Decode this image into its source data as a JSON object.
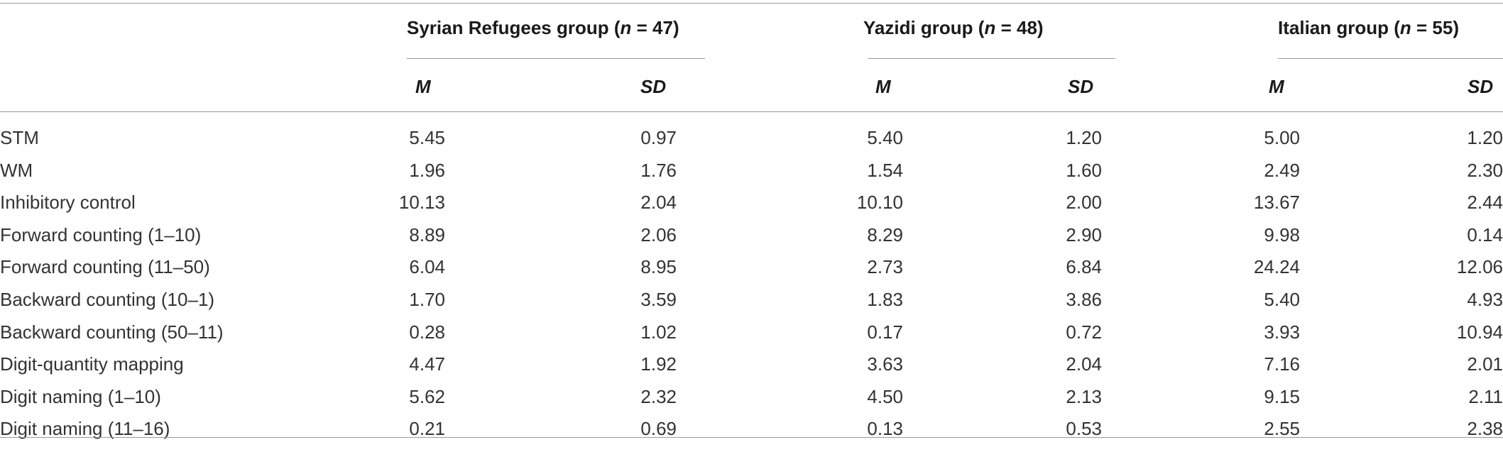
{
  "table": {
    "groups": [
      {
        "name": "Syrian Refugees group",
        "n_label": "n",
        "n_value": "= 47"
      },
      {
        "name": "Yazidi group",
        "n_label": "n",
        "n_value": "= 48"
      },
      {
        "name": "Italian group",
        "n_label": "n",
        "n_value": "= 55"
      }
    ],
    "subheaders": {
      "mean": "M",
      "sd": "SD"
    },
    "rows": [
      {
        "label": "STM",
        "values": [
          "5.45",
          "0.97",
          "5.40",
          "1.20",
          "5.00",
          "1.20"
        ]
      },
      {
        "label": "WM",
        "values": [
          "1.96",
          "1.76",
          "1.54",
          "1.60",
          "2.49",
          "2.30"
        ]
      },
      {
        "label": "Inhibitory control",
        "values": [
          "10.13",
          "2.04",
          "10.10",
          "2.00",
          "13.67",
          "2.44"
        ]
      },
      {
        "label": "Forward counting (1–10)",
        "values": [
          "8.89",
          "2.06",
          "8.29",
          "2.90",
          "9.98",
          "0.14"
        ]
      },
      {
        "label": "Forward counting (11–50)",
        "values": [
          "6.04",
          "8.95",
          "2.73",
          "6.84",
          "24.24",
          "12.06"
        ]
      },
      {
        "label": "Backward counting (10–1)",
        "values": [
          "1.70",
          "3.59",
          "1.83",
          "3.86",
          "5.40",
          "4.93"
        ]
      },
      {
        "label": "Backward counting (50–11)",
        "values": [
          "0.28",
          "1.02",
          "0.17",
          "0.72",
          "3.93",
          "10.94"
        ]
      },
      {
        "label": "Digit-quantity mapping",
        "values": [
          "4.47",
          "1.92",
          "3.63",
          "2.04",
          "7.16",
          "2.01"
        ]
      },
      {
        "label": "Digit naming (1–10)",
        "values": [
          "5.62",
          "2.32",
          "4.50",
          "2.13",
          "9.15",
          "2.11"
        ]
      },
      {
        "label": "Digit naming (11–16)",
        "values": [
          "0.21",
          "0.69",
          "0.13",
          "0.53",
          "2.55",
          "2.38"
        ]
      }
    ]
  }
}
